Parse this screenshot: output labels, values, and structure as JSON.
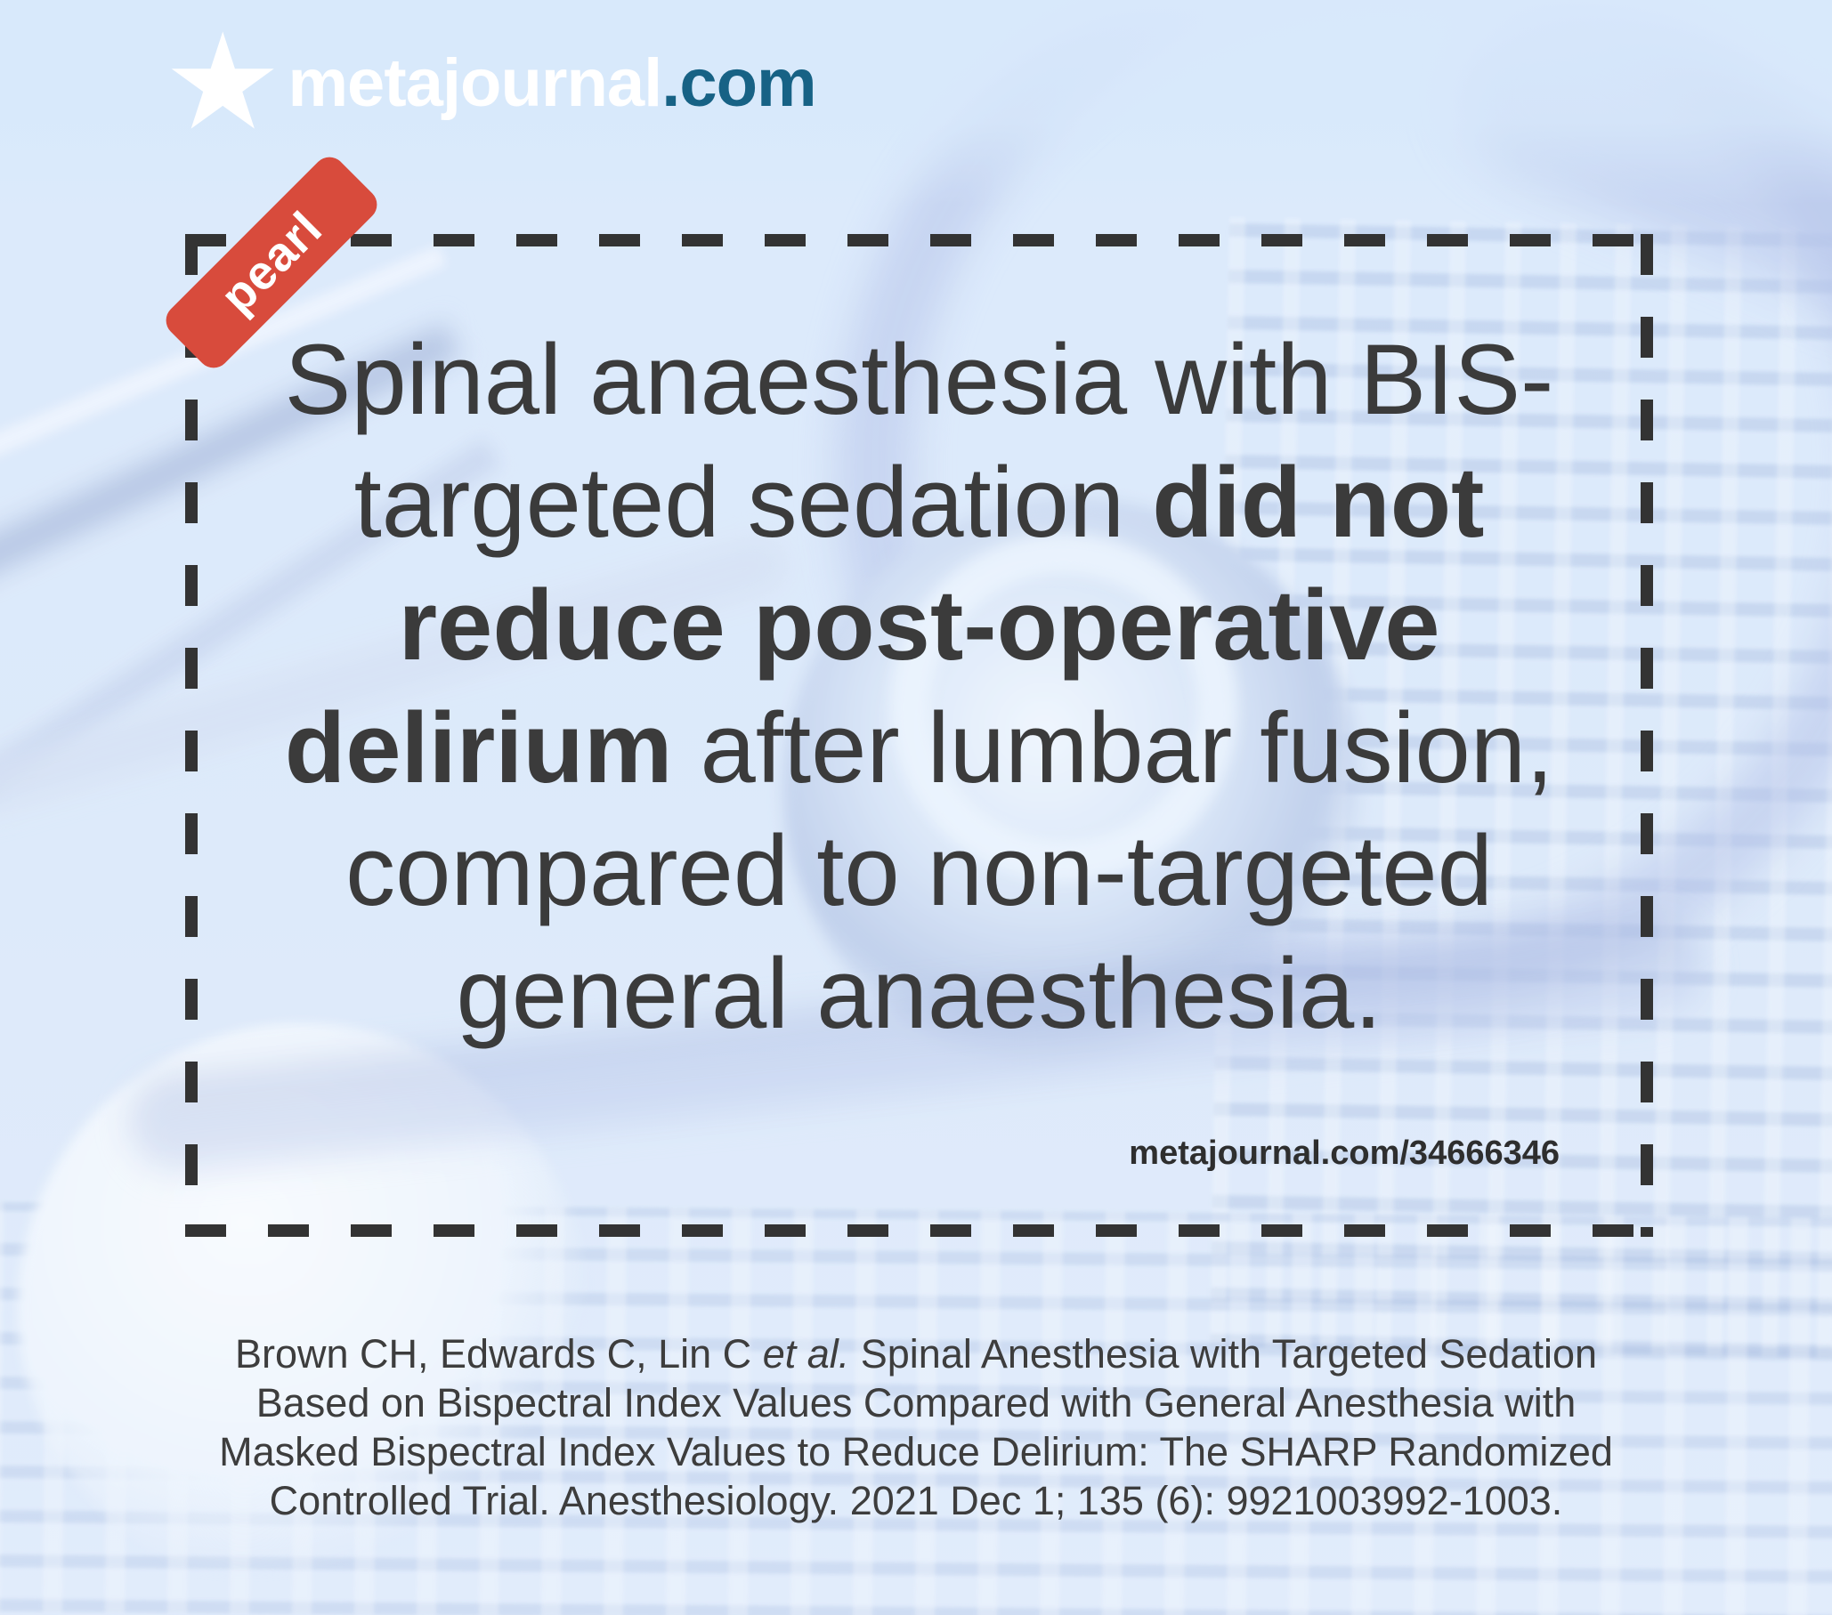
{
  "brand": {
    "name": "metajournal",
    "tld": ".com"
  },
  "icons": {
    "star": "★"
  },
  "badge": {
    "label": "pearl"
  },
  "quote": {
    "lines": [
      [
        {
          "text": "Spinal anaesthesia with BIS-",
          "bold": false
        }
      ],
      [
        {
          "text": "targeted sedation ",
          "bold": false
        },
        {
          "text": "did not",
          "bold": true
        }
      ],
      [
        {
          "text": "reduce post-operative",
          "bold": true
        }
      ],
      [
        {
          "text": "delirium",
          "bold": true
        },
        {
          "text": " after lumbar fusion,",
          "bold": false
        }
      ],
      [
        {
          "text": "compared to non-targeted",
          "bold": false
        }
      ],
      [
        {
          "text": "general anaesthesia.",
          "bold": false
        }
      ]
    ],
    "source_link": "metajournal.com/34666346"
  },
  "citation": {
    "lines": [
      [
        {
          "text": "Brown CH, Edwards C, Lin C "
        },
        {
          "text": "et al.",
          "italic": true
        },
        {
          "text": " Spinal Anesthesia with Targeted Sedation"
        }
      ],
      [
        {
          "text": "Based on Bispectral Index Values Compared with General Anesthesia with"
        }
      ],
      [
        {
          "text": "Masked Bispectral Index Values to Reduce Delirium: The SHARP Randomized"
        }
      ],
      [
        {
          "text": "Controlled Trial. Anesthesiology. 2021 Dec 1; 135 (6): 9921003992-1003."
        }
      ]
    ]
  },
  "colors": {
    "accent_red": "#d84b3c",
    "brand_teal": "#176285",
    "dash_border": "#333333",
    "text_dark": "#3b3b3b",
    "background_blue": "#dceafc"
  }
}
